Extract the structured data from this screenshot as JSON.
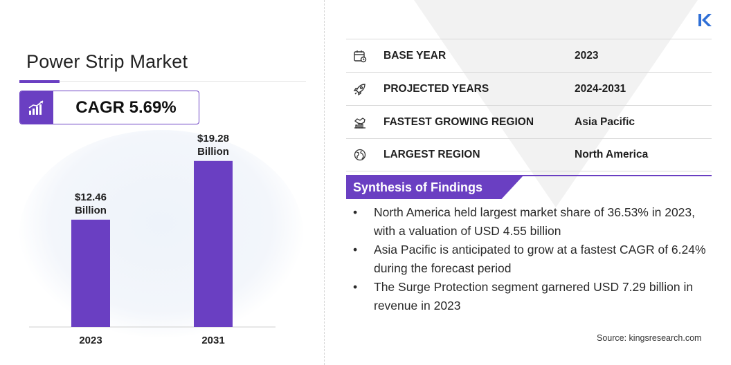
{
  "title": "Power Strip Market",
  "cagr": "CAGR 5.69%",
  "chart_data": {
    "type": "bar",
    "categories": [
      "2023",
      "2031"
    ],
    "values": [
      12.46,
      19.28
    ],
    "data_labels": [
      [
        "$12.46",
        "Billion"
      ],
      [
        "$19.28",
        "Billion"
      ]
    ],
    "ylim": [
      0,
      24
    ],
    "bar_color": "#6a3fc2"
  },
  "info": [
    {
      "icon": "calendar-icon",
      "key": "BASE YEAR",
      "value": "2023"
    },
    {
      "icon": "rocket-icon",
      "key": "PROJECTED YEARS",
      "value": "2024-2031"
    },
    {
      "icon": "region-growth-icon",
      "key": "FASTEST GROWING REGION",
      "value": "Asia Pacific"
    },
    {
      "icon": "globe-icon",
      "key": "LARGEST REGION",
      "value": "North America"
    }
  ],
  "synthesis": {
    "heading": "Synthesis of Findings",
    "items": [
      "North America held largest market share of 36.53% in 2023, with a valuation of USD 4.55 billion",
      "Asia Pacific is anticipated to grow at a fastest CAGR of 6.24% during the forecast period",
      "The Surge Protection segment garnered USD 7.29 billion in revenue in 2023"
    ]
  },
  "source": "Source:  kingsresearch.com",
  "colors": {
    "accent": "#6a3fc2"
  }
}
